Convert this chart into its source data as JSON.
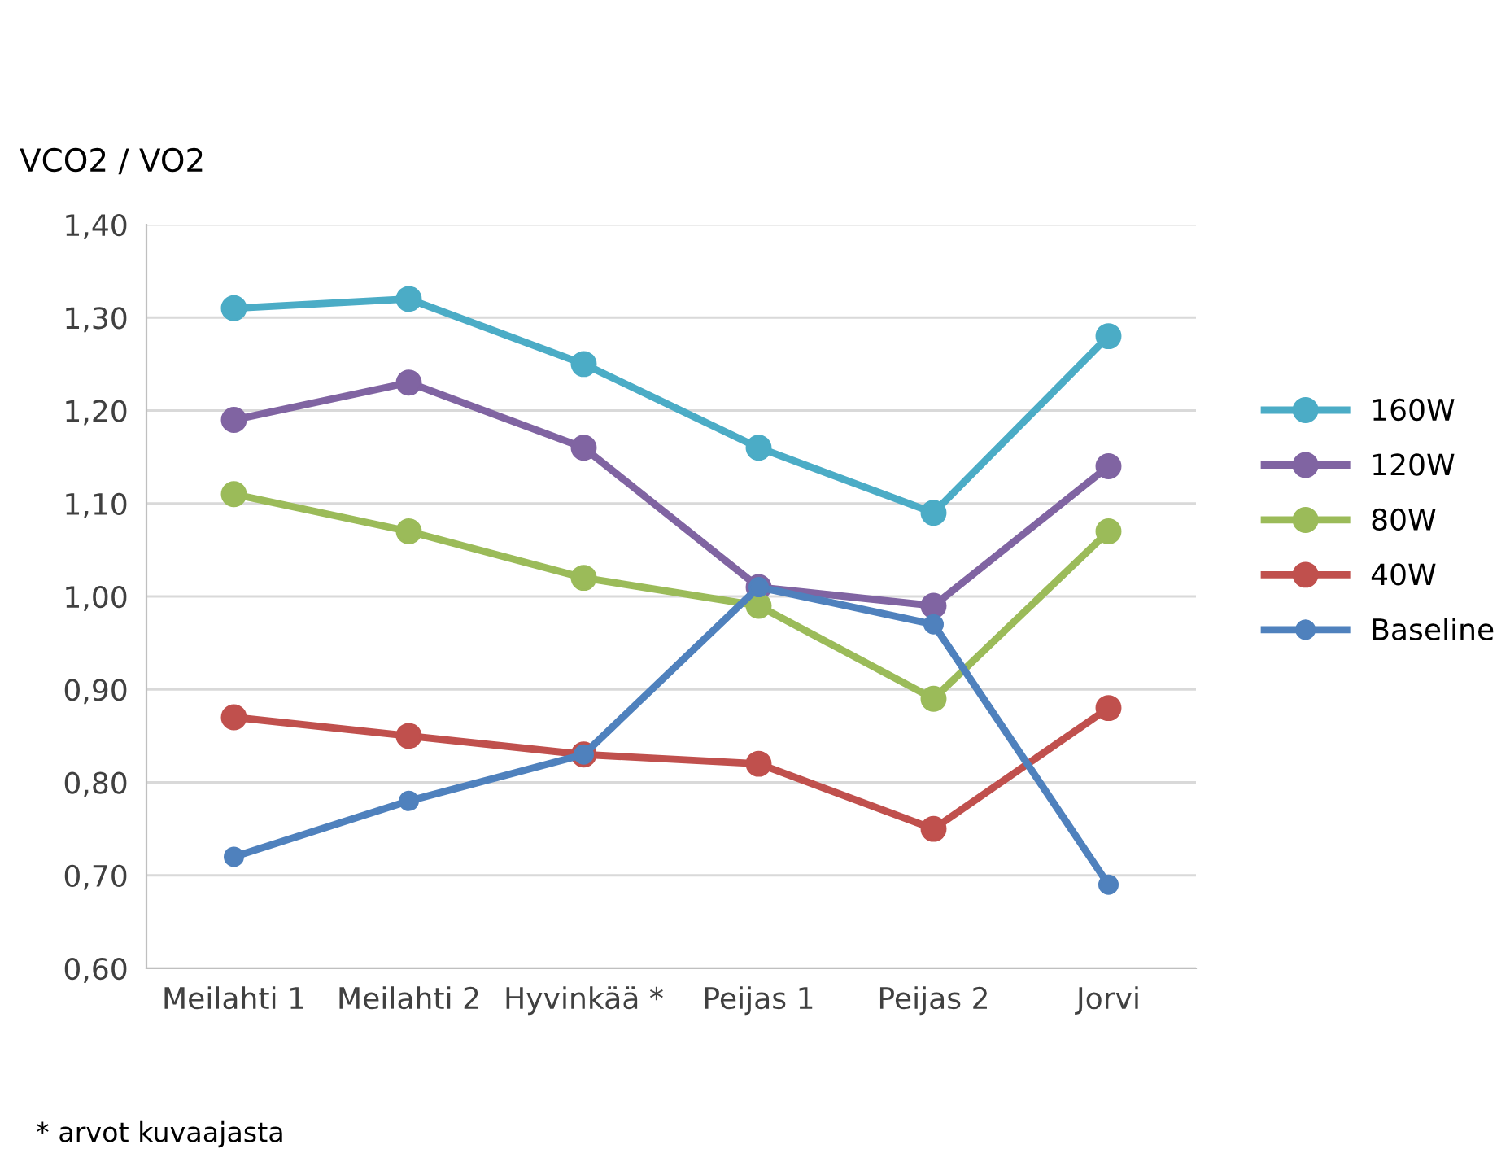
{
  "chart_data": {
    "type": "line",
    "ylabel": "VCO2 / VO2",
    "categories": [
      "Meilahti 1",
      "Meilahti 2",
      "Hyvinkää *",
      "Peijas 1",
      "Peijas 2",
      "Jorvi"
    ],
    "series": [
      {
        "name": "160W",
        "color": "#4bacc6",
        "values": [
          1.31,
          1.32,
          1.25,
          1.16,
          1.09,
          1.28
        ]
      },
      {
        "name": "120W",
        "color": "#8064a2",
        "values": [
          1.19,
          1.23,
          1.16,
          1.01,
          0.99,
          1.14
        ]
      },
      {
        "name": "80W",
        "color": "#9bbb59",
        "values": [
          1.11,
          1.07,
          1.02,
          0.99,
          0.89,
          1.07
        ]
      },
      {
        "name": "40W",
        "color": "#c0504d",
        "values": [
          0.87,
          0.85,
          0.83,
          0.82,
          0.75,
          0.88
        ]
      },
      {
        "name": "Baseline",
        "color": "#4f81bd",
        "values": [
          0.72,
          0.78,
          0.83,
          1.01,
          0.97,
          0.69
        ]
      }
    ],
    "ylim": [
      0.6,
      1.4
    ],
    "yticks": [
      {
        "value": 0.6,
        "label": "0,60"
      },
      {
        "value": 0.7,
        "label": "0,70"
      },
      {
        "value": 0.8,
        "label": "0,80"
      },
      {
        "value": 0.9,
        "label": "0,90"
      },
      {
        "value": 1.0,
        "label": "1,00"
      },
      {
        "value": 1.1,
        "label": "1,10"
      },
      {
        "value": 1.2,
        "label": "1,20"
      },
      {
        "value": 1.3,
        "label": "1,30"
      },
      {
        "value": 1.4,
        "label": "1,40"
      }
    ],
    "grid": "y",
    "legend": "right",
    "marker": "circle",
    "line_style": "solid",
    "annotations": [
      "* arvot kuvaajasta"
    ]
  }
}
